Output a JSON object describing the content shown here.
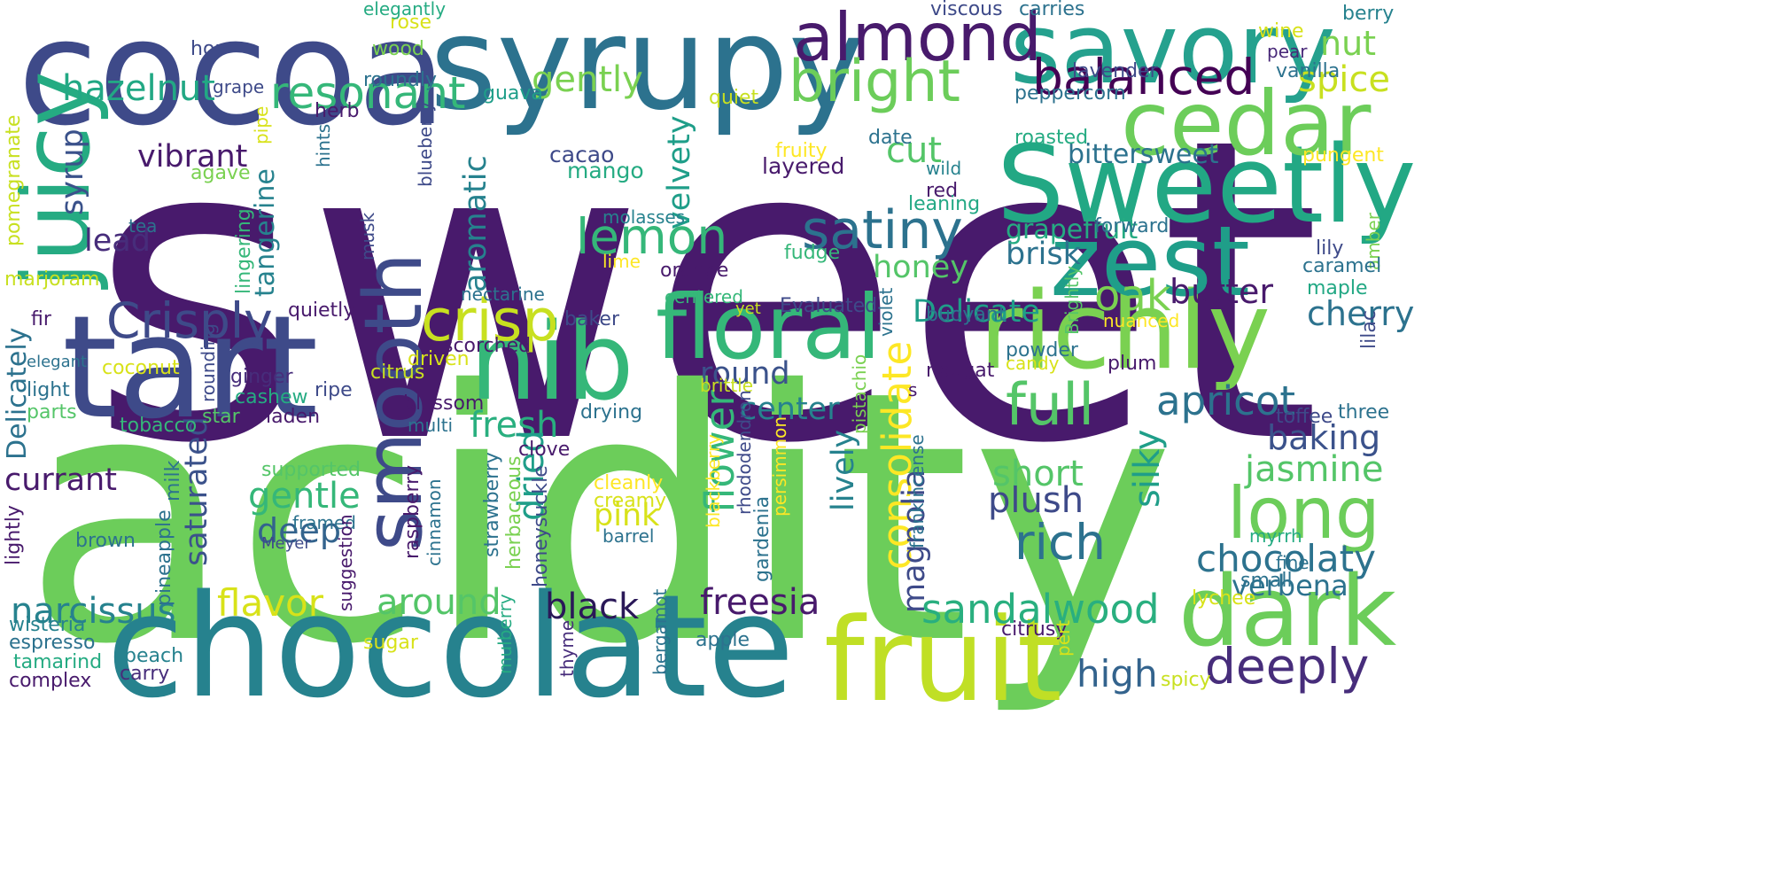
{
  "words": [
    {
      "text": "sweet",
      "color": "#481a6c"
    },
    {
      "text": "acidity",
      "color": "#6ccd5a"
    },
    {
      "text": "cocoa",
      "color": "#3e4a89"
    },
    {
      "text": "syrupy",
      "color": "#2c728e"
    },
    {
      "text": "savory",
      "color": "#25a18e"
    },
    {
      "text": "chocolate",
      "color": "#26828e"
    },
    {
      "text": "fruit",
      "color": "#c0df25"
    },
    {
      "text": "tart",
      "color": "#3e4a89"
    },
    {
      "text": "nib",
      "color": "#35b779"
    },
    {
      "text": "richly",
      "color": "#7ad151"
    },
    {
      "text": "Sweetly",
      "color": "#22a884"
    },
    {
      "text": "cedar",
      "color": "#6ccd5a"
    },
    {
      "text": "zest",
      "color": "#1f9e89"
    },
    {
      "text": "dark",
      "color": "#6ccd5a"
    },
    {
      "text": "floral",
      "color": "#35b779"
    },
    {
      "text": "smooth",
      "color": "#3e4a89"
    },
    {
      "text": "juicy",
      "color": "#25ab82"
    },
    {
      "text": "almond",
      "color": "#481a6c"
    },
    {
      "text": "bright",
      "color": "#6ccd5a"
    },
    {
      "text": "balanced",
      "color": "#440154"
    },
    {
      "text": "resonant",
      "color": "#35b779"
    },
    {
      "text": "long",
      "color": "#6ccd5a"
    },
    {
      "text": "deeply",
      "color": "#472d7b"
    },
    {
      "text": "Crisply",
      "color": "#3e4a89"
    },
    {
      "text": "crisp",
      "color": "#c8e020"
    },
    {
      "text": "satiny",
      "color": "#2c728e"
    },
    {
      "text": "lemon",
      "color": "#35b779"
    },
    {
      "text": "full",
      "color": "#54c568"
    },
    {
      "text": "flower",
      "color": "#35b779"
    },
    {
      "text": "consolidate",
      "color": "#fde725"
    },
    {
      "text": "rich",
      "color": "#2c728e"
    },
    {
      "text": "fresh",
      "color": "#29af7f"
    },
    {
      "text": "apricot",
      "color": "#2c728e"
    },
    {
      "text": "chocolaty",
      "color": "#2c728e"
    },
    {
      "text": "sandalwood",
      "color": "#29af7f"
    },
    {
      "text": "narcissus",
      "color": "#26828e"
    },
    {
      "text": "flavor",
      "color": "#d8e219"
    },
    {
      "text": "around",
      "color": "#54c568"
    },
    {
      "text": "black",
      "color": "#2a1858"
    },
    {
      "text": "freesia",
      "color": "#481a6c"
    },
    {
      "text": "high",
      "color": "#33638d"
    },
    {
      "text": "oak",
      "color": "#7ad151"
    },
    {
      "text": "butter",
      "color": "#481a6c"
    },
    {
      "text": "cherry",
      "color": "#2c728e"
    },
    {
      "text": "baking",
      "color": "#3b528b"
    },
    {
      "text": "jasmine",
      "color": "#54c568"
    },
    {
      "text": "silky",
      "color": "#1f9e89"
    },
    {
      "text": "plush",
      "color": "#3e4a89"
    },
    {
      "text": "short",
      "color": "#54c568"
    },
    {
      "text": "verbena",
      "color": "#2c728e"
    },
    {
      "text": "Delicate",
      "color": "#1f9e89"
    },
    {
      "text": "brisk",
      "color": "#2c728e"
    },
    {
      "text": "honey",
      "color": "#54c568"
    },
    {
      "text": "cut",
      "color": "#54c568"
    },
    {
      "text": "spice",
      "color": "#c8e020"
    },
    {
      "text": "nut",
      "color": "#7ad151"
    },
    {
      "text": "berry",
      "color": "#26828e"
    },
    {
      "text": "hazelnut",
      "color": "#22a884"
    },
    {
      "text": "gently",
      "color": "#7ad151"
    },
    {
      "text": "vibrant",
      "color": "#481a6c"
    },
    {
      "text": "velvety",
      "color": "#1f9e89"
    },
    {
      "text": "aromatic",
      "color": "#26828e"
    },
    {
      "text": "lead",
      "color": "#472d7b"
    },
    {
      "text": "syrup",
      "color": "#3b528b"
    },
    {
      "text": "tangerine",
      "color": "#26828e"
    },
    {
      "text": "saturated",
      "color": "#3b528b"
    },
    {
      "text": "currant",
      "color": "#481a6c"
    },
    {
      "text": "gentle",
      "color": "#35b779"
    },
    {
      "text": "deep",
      "color": "#33638d"
    },
    {
      "text": "round",
      "color": "#3b528b"
    },
    {
      "text": "center",
      "color": "#26828e"
    },
    {
      "text": "dried",
      "color": "#1f9e89"
    },
    {
      "text": "pink",
      "color": "#d8e219"
    },
    {
      "text": "magnolia",
      "color": "#3e4a89"
    },
    {
      "text": "lively",
      "color": "#26828e"
    },
    {
      "text": "bittersweet",
      "color": "#2c728e"
    },
    {
      "text": "grapefruit",
      "color": "#25ab82"
    },
    {
      "text": "Delicately",
      "color": "#2c728e"
    },
    {
      "text": "wood",
      "color": "#7ad151"
    },
    {
      "text": "rose",
      "color": "#d8e219"
    },
    {
      "text": "hop",
      "color": "#3e4a89"
    },
    {
      "text": "roundly",
      "color": "#2c728e"
    },
    {
      "text": "elegantly",
      "color": "#25ab82"
    },
    {
      "text": "viscous",
      "color": "#3e4a89"
    },
    {
      "text": "carries",
      "color": "#2c728e"
    },
    {
      "text": "lavender",
      "color": "#3e4a89"
    },
    {
      "text": "wine",
      "color": "#d8e219"
    },
    {
      "text": "pear",
      "color": "#482878"
    },
    {
      "text": "vanilla",
      "color": "#2c728e"
    },
    {
      "text": "guava",
      "color": "#1f9e89"
    },
    {
      "text": "grape",
      "color": "#3e4a89"
    },
    {
      "text": "quiet",
      "color": "#c8e020"
    },
    {
      "text": "peppercorn",
      "color": "#2c728e"
    },
    {
      "text": "herb",
      "color": "#481a6c"
    },
    {
      "text": "hints",
      "color": "#2c728e"
    },
    {
      "text": "blueberry",
      "color": "#3e4a89"
    },
    {
      "text": "cacao",
      "color": "#3e4a89"
    },
    {
      "text": "mango",
      "color": "#25ab82"
    },
    {
      "text": "fruity",
      "color": "#fde725"
    },
    {
      "text": "layered",
      "color": "#481a6c"
    },
    {
      "text": "date",
      "color": "#2c728e"
    },
    {
      "text": "roasted",
      "color": "#25ab82"
    },
    {
      "text": "pungent",
      "color": "#fde725"
    },
    {
      "text": "wild",
      "color": "#26828e"
    },
    {
      "text": "red",
      "color": "#481a6c"
    },
    {
      "text": "leaning",
      "color": "#22a884"
    },
    {
      "text": "forward",
      "color": "#2c728e"
    },
    {
      "text": "amber",
      "color": "#7ad151"
    },
    {
      "text": "lily",
      "color": "#3e4a89"
    },
    {
      "text": "caramel",
      "color": "#2c728e"
    },
    {
      "text": "maple",
      "color": "#22a884"
    },
    {
      "text": "pomegranate",
      "color": "#c8e020"
    },
    {
      "text": "pipe",
      "color": "#d8e219"
    },
    {
      "text": "agave",
      "color": "#7ad151"
    },
    {
      "text": "tea",
      "color": "#2c728e"
    },
    {
      "text": "lingering",
      "color": "#35b779"
    },
    {
      "text": "musk",
      "color": "#3e4a89"
    },
    {
      "text": "molasses",
      "color": "#26828e"
    },
    {
      "text": "lime",
      "color": "#fde725"
    },
    {
      "text": "orange",
      "color": "#481a6c"
    },
    {
      "text": "fudge",
      "color": "#35b779"
    },
    {
      "text": "marjoram",
      "color": "#c8e020"
    },
    {
      "text": "nectarine",
      "color": "#2c728e"
    },
    {
      "text": "centered",
      "color": "#35b779"
    },
    {
      "text": "quietly",
      "color": "#481a6c"
    },
    {
      "text": "yet",
      "color": "#c8e020"
    },
    {
      "text": "Evaluated",
      "color": "#3e4a89"
    },
    {
      "text": "violet",
      "color": "#2c728e"
    },
    {
      "text": "Brightly",
      "color": "#54c568"
    },
    {
      "text": "nuanced",
      "color": "#fde725"
    },
    {
      "text": "fir",
      "color": "#481a6c"
    },
    {
      "text": "baker",
      "color": "#3e4a89"
    },
    {
      "text": "scorched",
      "color": "#481a6c"
    },
    {
      "text": "buoyant",
      "color": "#2c728e"
    },
    {
      "text": "powder",
      "color": "#2c728e"
    },
    {
      "text": "candy",
      "color": "#d8e219"
    },
    {
      "text": "plum",
      "color": "#481a6c"
    },
    {
      "text": "elegant",
      "color": "#2c728e"
    },
    {
      "text": "coconut",
      "color": "#d8e219"
    },
    {
      "text": "driven",
      "color": "#d8e219"
    },
    {
      "text": "citrus",
      "color": "#c8e020"
    },
    {
      "text": "light",
      "color": "#2c728e"
    },
    {
      "text": "ginger",
      "color": "#472d7b"
    },
    {
      "text": "ripe",
      "color": "#3e4a89"
    },
    {
      "text": "cashew",
      "color": "#25ab82"
    },
    {
      "text": "pistachio",
      "color": "#7ad151"
    },
    {
      "text": "nougat",
      "color": "#481a6c"
    },
    {
      "text": "s",
      "color": "#481a6c"
    },
    {
      "text": "blossom",
      "color": "#481a6c"
    },
    {
      "text": "lilac",
      "color": "#3e4a89"
    },
    {
      "text": "toffee",
      "color": "#3e4a89"
    },
    {
      "text": "three",
      "color": "#2c728e"
    },
    {
      "text": "parts",
      "color": "#54c568"
    },
    {
      "text": "laden",
      "color": "#481a6c"
    },
    {
      "text": "multi",
      "color": "#2c728e"
    },
    {
      "text": "drying",
      "color": "#2c728e"
    },
    {
      "text": "brittle",
      "color": "#c8e020"
    },
    {
      "text": "tobacco",
      "color": "#35b779"
    },
    {
      "text": "star",
      "color": "#54c568"
    },
    {
      "text": "rounding",
      "color": "#3e4a89"
    },
    {
      "text": "clove",
      "color": "#481a6c"
    },
    {
      "text": "rhododendron",
      "color": "#3e4a89"
    },
    {
      "text": "blackberry",
      "color": "#fde725"
    },
    {
      "text": "persimmon",
      "color": "#fde725"
    },
    {
      "text": "frankincense",
      "color": "#2c728e"
    },
    {
      "text": "cleanly",
      "color": "#fde725"
    },
    {
      "text": "creamy",
      "color": "#d8e219"
    },
    {
      "text": "supported",
      "color": "#54c568"
    },
    {
      "text": "milk",
      "color": "#2c728e"
    },
    {
      "text": "pineapple",
      "color": "#2c728e"
    },
    {
      "text": "lightly",
      "color": "#481a6c"
    },
    {
      "text": "brown",
      "color": "#2c728e"
    },
    {
      "text": "framed",
      "color": "#2c728e"
    },
    {
      "text": "Meyer",
      "color": "#3e4a89"
    },
    {
      "text": "raspberry",
      "color": "#481a6c"
    },
    {
      "text": "cinnamon",
      "color": "#2c728e"
    },
    {
      "text": "strawberry",
      "color": "#2c728e"
    },
    {
      "text": "herbaceous",
      "color": "#7ad151"
    },
    {
      "text": "honeysuckle",
      "color": "#3e4a89"
    },
    {
      "text": "barrel",
      "color": "#2c728e"
    },
    {
      "text": "gardenia",
      "color": "#2c728e"
    },
    {
      "text": "myrrh",
      "color": "#25ab82"
    },
    {
      "text": "fine",
      "color": "#2c728e"
    },
    {
      "text": "small",
      "color": "#2c728e"
    },
    {
      "text": "lychee",
      "color": "#d8e219"
    },
    {
      "text": "citrusy",
      "color": "#481a6c"
    },
    {
      "text": "pert",
      "color": "#d8e219"
    },
    {
      "text": "suggestion",
      "color": "#481a6c"
    },
    {
      "text": "wisteria",
      "color": "#26828e"
    },
    {
      "text": "espresso",
      "color": "#2c728e"
    },
    {
      "text": "tamarind",
      "color": "#25ab82"
    },
    {
      "text": "complex",
      "color": "#481a6c"
    },
    {
      "text": "peach",
      "color": "#26828e"
    },
    {
      "text": "carry",
      "color": "#472d7b"
    },
    {
      "text": "sugar",
      "color": "#d8e219"
    },
    {
      "text": "mulberry",
      "color": "#25ab82"
    },
    {
      "text": "thyme",
      "color": "#472d7b"
    },
    {
      "text": "bergamot",
      "color": "#2c728e"
    },
    {
      "text": "apple",
      "color": "#2c728e"
    },
    {
      "text": "spicy",
      "color": "#c8e020"
    }
  ]
}
